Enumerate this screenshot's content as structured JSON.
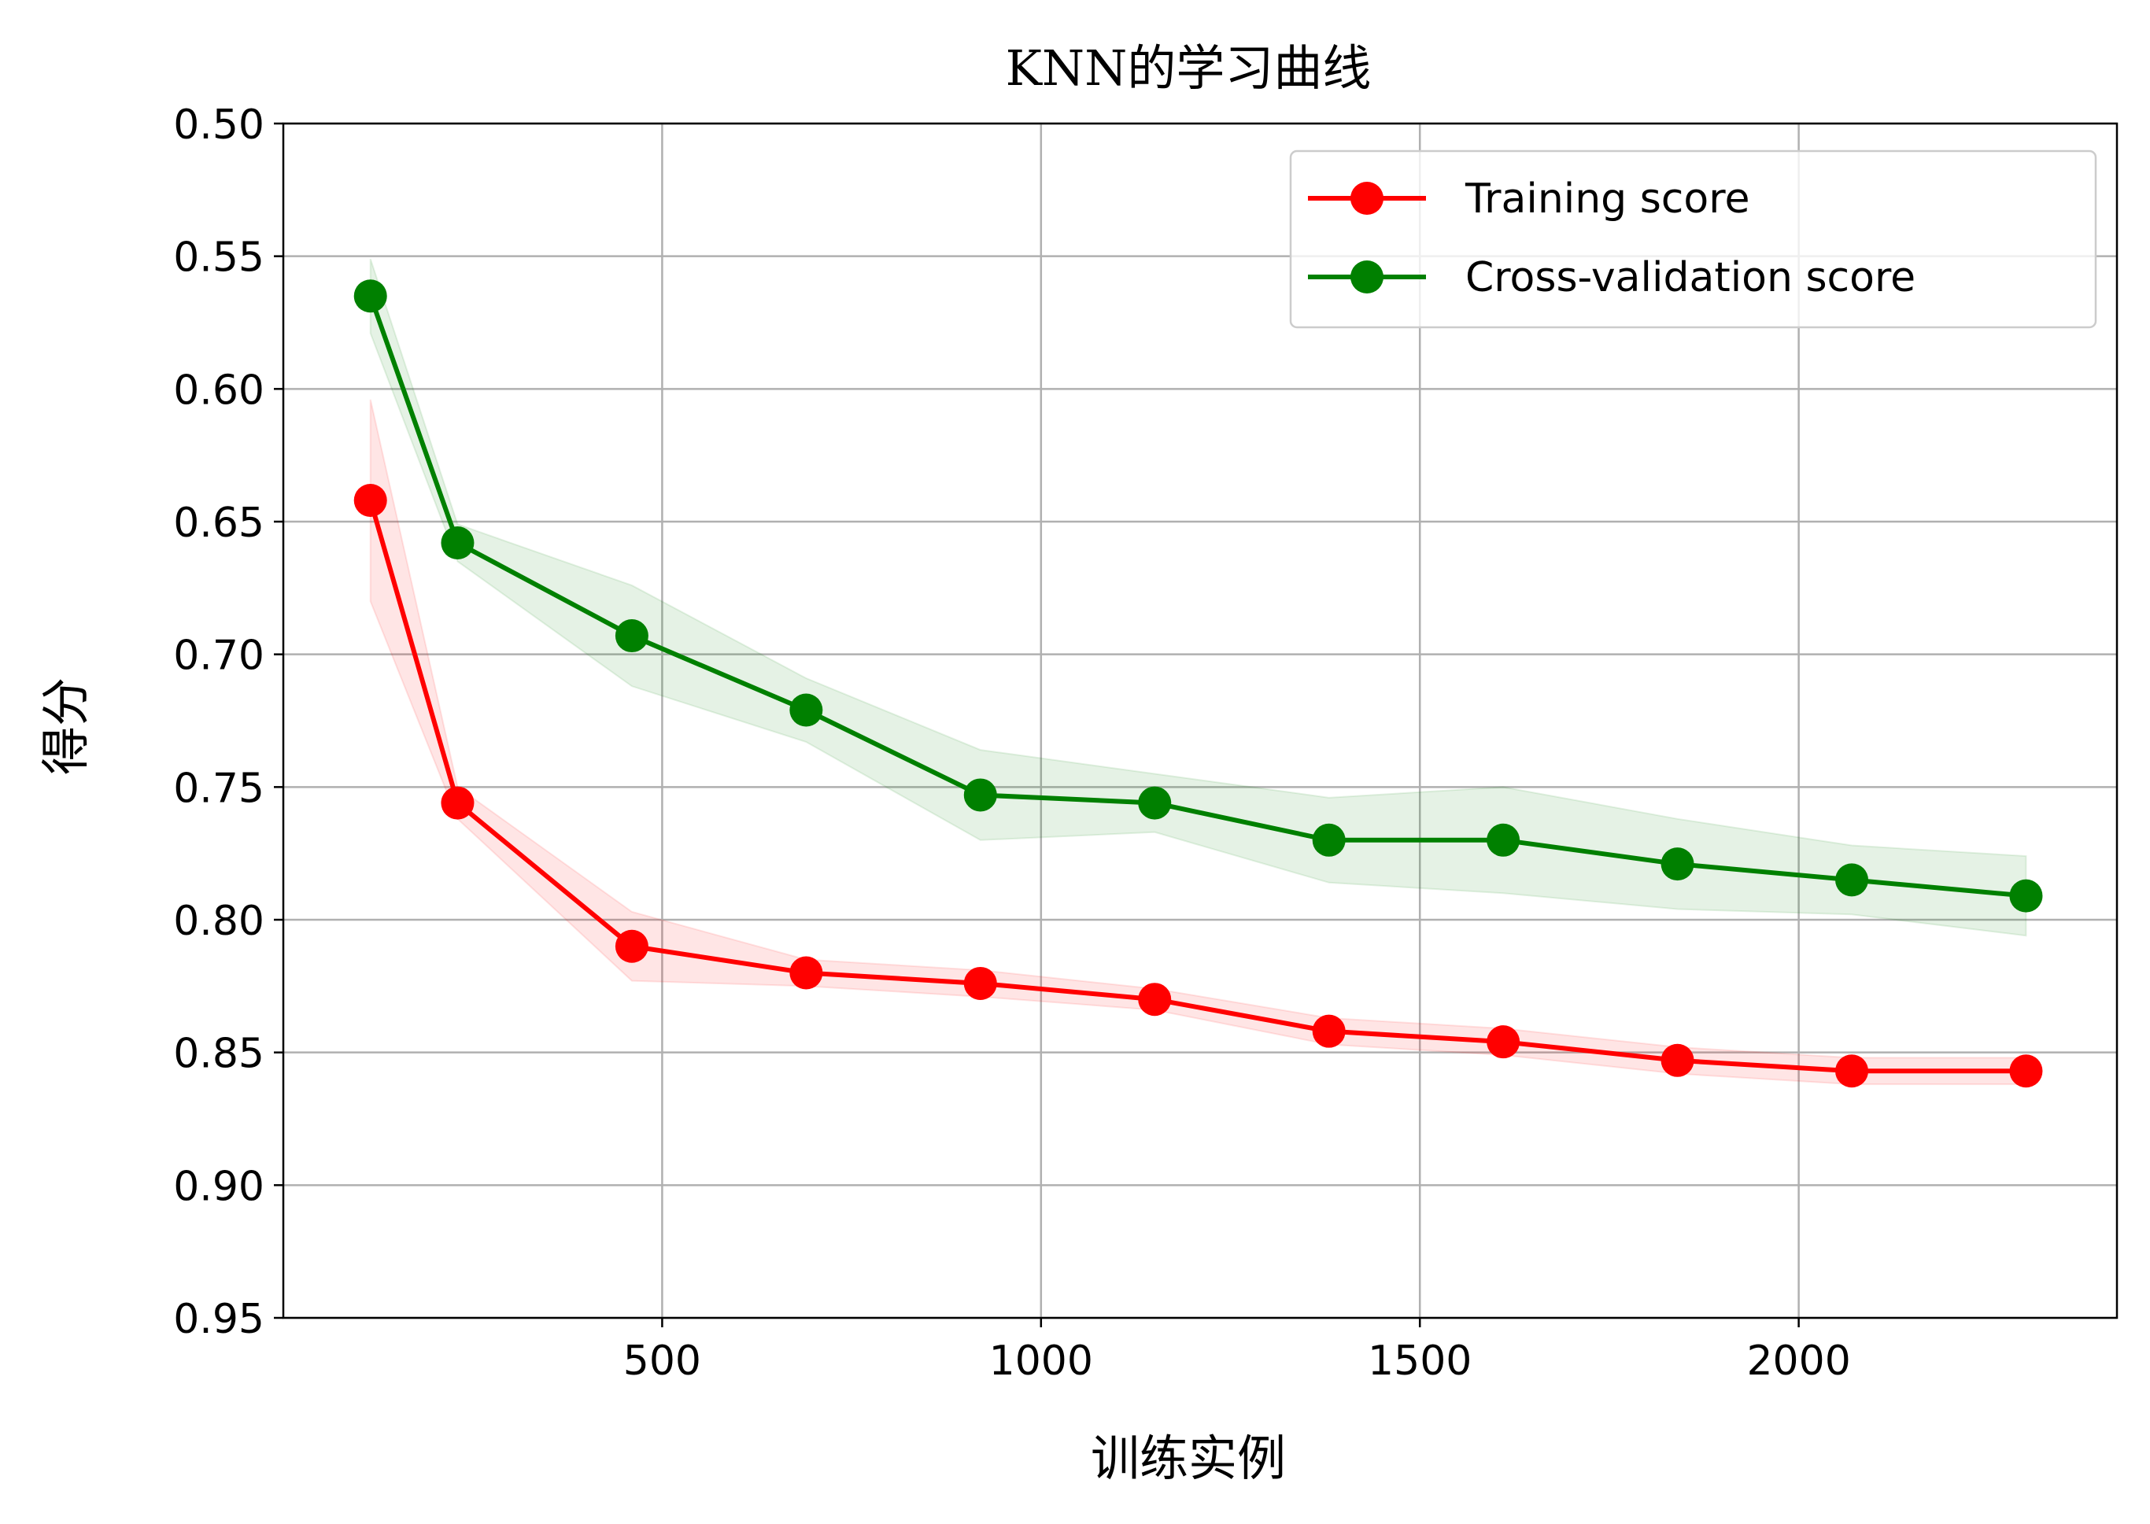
{
  "chart_data": {
    "type": "line",
    "title": "KNN的学习曲线",
    "xlabel": "训练实例",
    "ylabel": "得分",
    "xlim": [
      0,
      2420
    ],
    "ylim": [
      0.95,
      0.5
    ],
    "y_inverted": true,
    "grid": true,
    "legend_position": "top-right",
    "xticks": [
      500,
      1000,
      1500,
      2000
    ],
    "xtick_labels": [
      "500",
      "1000",
      "1500",
      "2000"
    ],
    "yticks": [
      0.5,
      0.55,
      0.6,
      0.65,
      0.7,
      0.75,
      0.8,
      0.85,
      0.9,
      0.95
    ],
    "ytick_labels": [
      "0.50",
      "0.55",
      "0.60",
      "0.65",
      "0.70",
      "0.75",
      "0.80",
      "0.85",
      "0.90",
      "0.95"
    ],
    "x": [
      115,
      230,
      460,
      690,
      920,
      1150,
      1380,
      1610,
      1840,
      2070,
      2300
    ],
    "series": [
      {
        "name": "Training score",
        "color": "#ff0000",
        "band_color": "#ff0000",
        "values": [
          0.642,
          0.756,
          0.81,
          0.82,
          0.824,
          0.83,
          0.842,
          0.846,
          0.853,
          0.857,
          0.857
        ],
        "lower": [
          0.604,
          0.75,
          0.797,
          0.815,
          0.819,
          0.826,
          0.837,
          0.841,
          0.848,
          0.852,
          0.852
        ],
        "upper": [
          0.68,
          0.762,
          0.823,
          0.825,
          0.829,
          0.834,
          0.847,
          0.851,
          0.858,
          0.862,
          0.862
        ]
      },
      {
        "name": "Cross-validation score",
        "color": "#008000",
        "band_color": "#008000",
        "values": [
          0.565,
          0.658,
          0.693,
          0.721,
          0.753,
          0.756,
          0.77,
          0.77,
          0.779,
          0.785,
          0.791
        ],
        "lower": [
          0.551,
          0.651,
          0.674,
          0.709,
          0.736,
          0.745,
          0.754,
          0.75,
          0.762,
          0.772,
          0.776
        ],
        "upper": [
          0.579,
          0.665,
          0.712,
          0.733,
          0.77,
          0.767,
          0.786,
          0.79,
          0.796,
          0.798,
          0.806
        ]
      }
    ]
  }
}
